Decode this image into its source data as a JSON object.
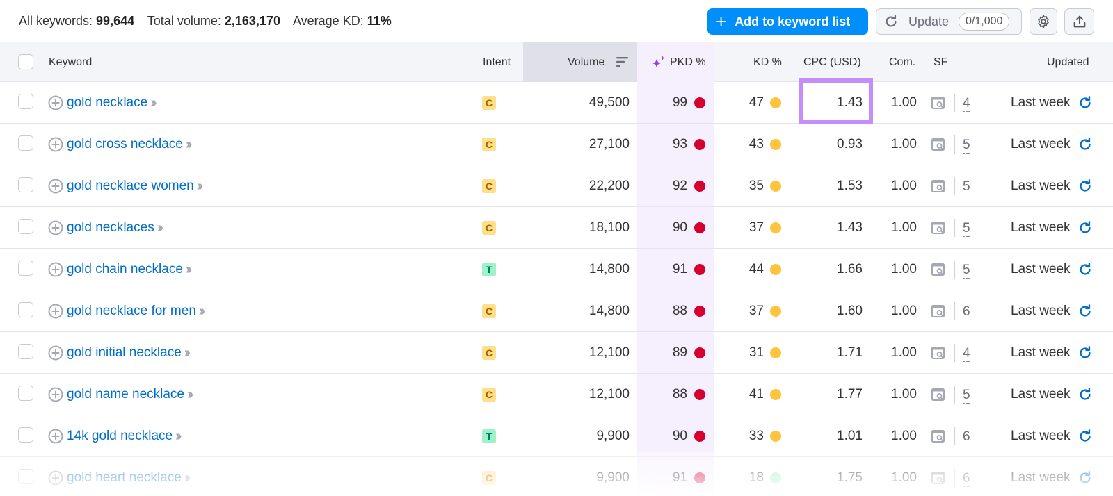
{
  "summary": {
    "all_keywords_label": "All keywords:",
    "all_keywords_value": "99,644",
    "total_volume_label": "Total volume:",
    "total_volume_value": "2,163,170",
    "average_kd_label": "Average KD:",
    "average_kd_value": "11%"
  },
  "toolbar": {
    "add_label": "Add to keyword list",
    "update_label": "Update",
    "update_counter": "0/1,000",
    "icons": {
      "add": "plus-icon",
      "update": "refresh-icon",
      "settings": "gear-icon",
      "export": "export-icon"
    }
  },
  "table": {
    "columns": {
      "keyword": "Keyword",
      "intent": "Intent",
      "volume": "Volume",
      "pkd": "PKD %",
      "kd": "KD %",
      "cpc": "CPC (USD)",
      "com": "Com.",
      "sf": "SF",
      "updated": "Updated"
    },
    "colors": {
      "link": "#006dca",
      "pkd_red": "#d6002f",
      "kd_yellow": "#ffc33d",
      "kd_green": "#9ef2c9",
      "highlight": "#c58dfa",
      "primary_button": "#008ff8"
    },
    "rows": [
      {
        "keyword": "gold necklace",
        "intent": "C",
        "volume": "49,500",
        "pkd": "99",
        "kd": "47",
        "cpc": "1.43",
        "com": "1.00",
        "sf": "4",
        "updated": "Last week"
      },
      {
        "keyword": "gold cross necklace",
        "intent": "C",
        "volume": "27,100",
        "pkd": "93",
        "kd": "43",
        "cpc": "0.93",
        "com": "1.00",
        "sf": "5",
        "updated": "Last week"
      },
      {
        "keyword": "gold necklace women",
        "intent": "C",
        "volume": "22,200",
        "pkd": "92",
        "kd": "35",
        "cpc": "1.53",
        "com": "1.00",
        "sf": "5",
        "updated": "Last week"
      },
      {
        "keyword": "gold necklaces",
        "intent": "C",
        "volume": "18,100",
        "pkd": "90",
        "kd": "37",
        "cpc": "1.43",
        "com": "1.00",
        "sf": "5",
        "updated": "Last week"
      },
      {
        "keyword": "gold chain necklace",
        "intent": "T",
        "volume": "14,800",
        "pkd": "91",
        "kd": "44",
        "cpc": "1.66",
        "com": "1.00",
        "sf": "5",
        "updated": "Last week"
      },
      {
        "keyword": "gold necklace for men",
        "intent": "C",
        "volume": "14,800",
        "pkd": "88",
        "kd": "37",
        "cpc": "1.60",
        "com": "1.00",
        "sf": "6",
        "updated": "Last week"
      },
      {
        "keyword": "gold initial necklace",
        "intent": "C",
        "volume": "12,100",
        "pkd": "89",
        "kd": "31",
        "cpc": "1.71",
        "com": "1.00",
        "sf": "4",
        "updated": "Last week"
      },
      {
        "keyword": "gold name necklace",
        "intent": "C",
        "volume": "12,100",
        "pkd": "88",
        "kd": "41",
        "cpc": "1.77",
        "com": "1.00",
        "sf": "5",
        "updated": "Last week"
      },
      {
        "keyword": "14k gold necklace",
        "intent": "T",
        "volume": "9,900",
        "pkd": "90",
        "kd": "33",
        "cpc": "1.01",
        "com": "1.00",
        "sf": "6",
        "updated": "Last week"
      },
      {
        "keyword": "gold heart necklace",
        "intent": "C",
        "volume": "9,900",
        "pkd": "91",
        "kd": "18",
        "cpc": "1.75",
        "com": "1.00",
        "sf": "6",
        "updated": "Last week"
      }
    ]
  }
}
